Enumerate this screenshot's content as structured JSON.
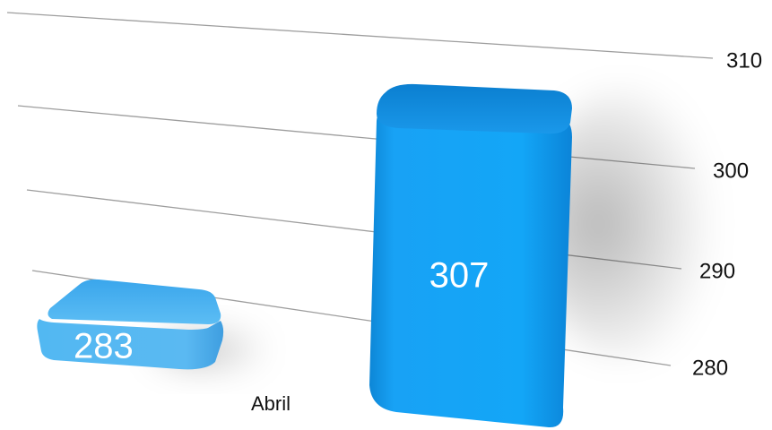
{
  "chart_data": {
    "type": "bar",
    "categories": [
      "Abril",
      ""
    ],
    "series": [
      {
        "values": [
          283,
          307
        ]
      }
    ],
    "data_labels": [
      "283",
      "307"
    ],
    "y_ticks": [
      {
        "value": 280,
        "label": "280"
      },
      {
        "value": 290,
        "label": "290"
      },
      {
        "value": 300,
        "label": "300"
      },
      {
        "value": 310,
        "label": "310"
      }
    ],
    "ylim": [
      280,
      310
    ],
    "y_axis_side": "right",
    "grid": true,
    "legend": "none",
    "colors": {
      "bar_left": "#4db3f0",
      "bar_right": "#16a0f5",
      "gridline": "#9e9e9e",
      "label_text": "#ffffff"
    }
  }
}
